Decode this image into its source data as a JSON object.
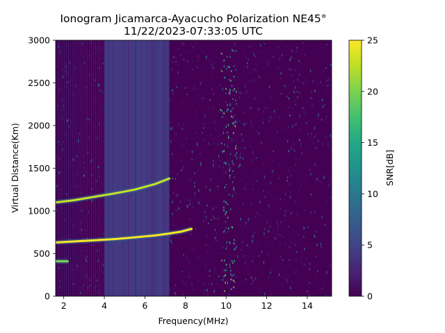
{
  "chart_data": {
    "type": "heatmap",
    "title_line1": "Ionogram Jicamarca-Ayacucho Polarization NE45°",
    "title_line2": "11/22/2023-07:33:05 UTC",
    "xlabel": "Frequency(MHz)",
    "ylabel": "Virtual Distance(Km)",
    "colorbar_label": "SNR[dB]",
    "xlim": [
      1.6,
      15.2
    ],
    "ylim": [
      0,
      3000
    ],
    "clim": [
      0,
      25
    ],
    "colormap": "viridis",
    "x_ticks": [
      2,
      4,
      6,
      8,
      10,
      12,
      14
    ],
    "y_ticks": [
      0,
      500,
      1000,
      1500,
      2000,
      2500,
      3000
    ],
    "colorbar_ticks": [
      0,
      5,
      10,
      15,
      20,
      25
    ],
    "background_noise_snr_db": 1,
    "interference_band_mhz": [
      4.0,
      7.2
    ],
    "interference_snr_db": 4,
    "traces": [
      {
        "name": "first-hop echo",
        "x": [
          1.6,
          2.5,
          3.5,
          4.5,
          5.5,
          6.5,
          7.2,
          7.8,
          8.3
        ],
        "y": [
          630,
          642,
          655,
          670,
          690,
          712,
          735,
          758,
          790
        ],
        "snr_db": 25
      },
      {
        "name": "second-hop echo",
        "x": [
          1.6,
          2.5,
          3.5,
          4.5,
          5.5,
          6.5,
          7.2
        ],
        "y": [
          1100,
          1125,
          1165,
          1205,
          1250,
          1315,
          1380
        ],
        "snr_db": 23
      },
      {
        "name": "low-frequency echo",
        "x": [
          1.6,
          2.2
        ],
        "y": [
          410,
          410
        ],
        "snr_db": 20
      }
    ]
  }
}
